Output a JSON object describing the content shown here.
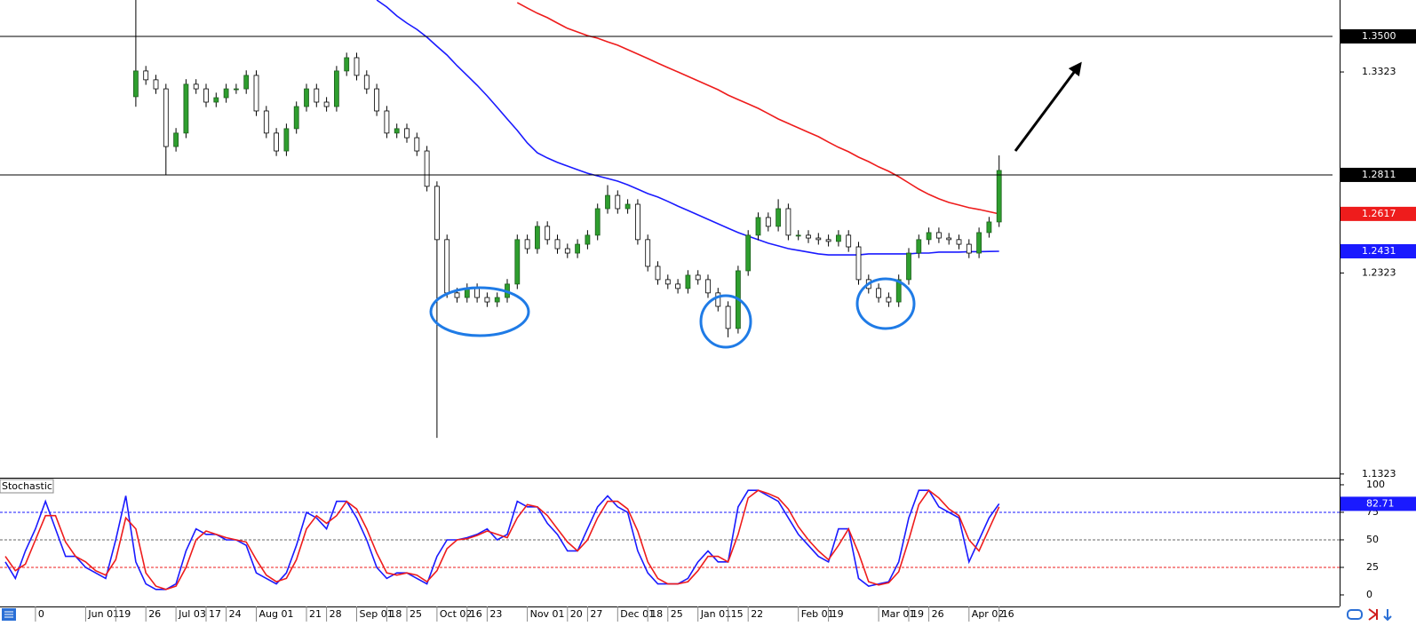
{
  "chart_data": [
    {
      "type": "candlestick",
      "categories": [
        null,
        null,
        null,
        "0",
        null,
        null,
        null,
        null,
        "Jun 01",
        null,
        null,
        "19",
        null,
        null,
        "26",
        null,
        null,
        "Jul 03",
        null,
        null,
        "17",
        null,
        "24",
        null,
        null,
        "Aug 01",
        null,
        null,
        null,
        null,
        "21",
        null,
        "28",
        null,
        null,
        "Sep 01",
        null,
        null,
        "18",
        null,
        "25",
        null,
        null,
        "Oct 02",
        null,
        null,
        "16",
        null,
        "23",
        null,
        null,
        null,
        "Nov 01",
        null,
        null,
        null,
        "20",
        null,
        "27",
        null,
        null,
        "Dec 01",
        null,
        null,
        "18",
        null,
        "25",
        null,
        null,
        "Jan 01",
        null,
        null,
        "15",
        null,
        "22",
        null,
        null,
        null,
        null,
        "Feb 01",
        null,
        null,
        "19",
        null,
        null,
        null,
        null,
        "Mar 01",
        null,
        null,
        "19",
        null,
        "26",
        null,
        null,
        null,
        "Apr 02",
        null,
        null,
        "16"
      ],
      "open": [
        null,
        null,
        null,
        null,
        null,
        null,
        null,
        null,
        null,
        null,
        null,
        null,
        null,
        1.32,
        1.3328,
        1.3284,
        1.3239,
        1.2952,
        1.3019,
        1.3262,
        1.3239,
        1.3173,
        1.3195,
        1.3239,
        1.3239,
        1.3306,
        1.3129,
        1.3019,
        1.293,
        1.3041,
        1.3151,
        1.3239,
        1.3173,
        1.3151,
        1.3328,
        1.3394,
        1.3306,
        1.3239,
        1.3129,
        1.3019,
        1.3041,
        1.2996,
        1.293,
        1.2754,
        1.2489,
        1.2224,
        1.2201,
        1.2246,
        1.2201,
        1.2179,
        1.2201,
        1.2268,
        1.2489,
        1.2444,
        1.2555,
        1.2489,
        1.2444,
        1.2422,
        1.2466,
        1.2511,
        1.2643,
        1.2709,
        1.2643,
        1.2665,
        1.2489,
        1.2356,
        1.229,
        1.2268,
        1.2246,
        1.2312,
        1.229,
        1.2224,
        1.2157,
        1.2047,
        1.2334,
        1.2511,
        1.2599,
        1.2555,
        1.2643,
        1.2511,
        1.2511,
        1.2497,
        1.2489,
        1.248,
        1.2511,
        1.2453,
        1.229,
        1.2246,
        1.2201,
        1.2179,
        1.229,
        1.2422,
        1.2489,
        1.2524,
        1.2497,
        1.2489,
        1.2466,
        1.2422,
        1.2524,
        1.2577
      ],
      "high": [
        null,
        null,
        null,
        null,
        null,
        null,
        null,
        null,
        null,
        null,
        null,
        null,
        null,
        1.3681,
        1.3353,
        1.3309,
        1.3264,
        1.3044,
        1.3287,
        1.3287,
        1.3264,
        1.322,
        1.3264,
        1.3264,
        1.3331,
        1.3331,
        1.3154,
        1.3044,
        1.3066,
        1.3176,
        1.3264,
        1.3264,
        1.3198,
        1.3353,
        1.3419,
        1.3419,
        1.3331,
        1.3264,
        1.3154,
        1.3066,
        1.3066,
        1.3021,
        1.2955,
        1.2779,
        1.2514,
        1.2249,
        1.2271,
        1.2271,
        1.2226,
        1.2226,
        1.2293,
        1.2514,
        1.2514,
        1.258,
        1.258,
        1.2514,
        1.2469,
        1.2491,
        1.2536,
        1.2668,
        1.276,
        1.2734,
        1.269,
        1.269,
        1.2514,
        1.2381,
        1.2315,
        1.2293,
        1.2337,
        1.2337,
        1.2315,
        1.2249,
        1.2182,
        1.2359,
        1.2536,
        1.2624,
        1.2624,
        1.269,
        1.2668,
        1.2536,
        1.2536,
        1.2522,
        1.2514,
        1.2536,
        1.2536,
        1.2478,
        1.2315,
        1.2271,
        1.2226,
        1.2315,
        1.2447,
        1.2514,
        1.2549,
        1.2549,
        1.2522,
        1.2514,
        1.2491,
        1.2549,
        1.2602,
        1.2908
      ],
      "low": [
        null,
        null,
        null,
        null,
        null,
        null,
        null,
        null,
        null,
        null,
        null,
        null,
        null,
        1.315,
        1.3259,
        1.3214,
        1.2811,
        1.2927,
        1.2994,
        1.3214,
        1.3148,
        1.3148,
        1.317,
        1.3214,
        1.3214,
        1.3104,
        1.2994,
        1.2905,
        1.2905,
        1.3016,
        1.3126,
        1.3148,
        1.3126,
        1.3126,
        1.3303,
        1.3281,
        1.3214,
        1.3104,
        1.2994,
        1.2994,
        1.2971,
        1.2905,
        1.2729,
        1.1503,
        1.2199,
        1.2176,
        1.2176,
        1.2176,
        1.2154,
        1.2154,
        1.2176,
        1.2243,
        1.2419,
        1.2419,
        1.2464,
        1.2419,
        1.2397,
        1.2397,
        1.2441,
        1.2486,
        1.2618,
        1.2618,
        1.2618,
        1.2464,
        1.2331,
        1.2265,
        1.2243,
        1.2221,
        1.2221,
        1.2265,
        1.2199,
        1.2132,
        1.2003,
        1.2022,
        1.2309,
        1.2486,
        1.253,
        1.253,
        1.2486,
        1.2486,
        1.2472,
        1.2464,
        1.2455,
        1.2455,
        1.2428,
        1.2265,
        1.2221,
        1.2176,
        1.2154,
        1.2154,
        1.2265,
        1.2397,
        1.2464,
        1.2472,
        1.2464,
        1.2441,
        1.2397,
        1.2397,
        1.2499,
        1.2552
      ],
      "close": [
        null,
        null,
        null,
        null,
        null,
        null,
        null,
        null,
        null,
        null,
        null,
        null,
        null,
        1.3328,
        1.3284,
        1.3239,
        1.2952,
        1.3019,
        1.3262,
        1.3239,
        1.3173,
        1.3195,
        1.3239,
        1.3239,
        1.3306,
        1.3129,
        1.3019,
        1.293,
        1.3041,
        1.3151,
        1.3239,
        1.3173,
        1.3151,
        1.3328,
        1.3394,
        1.3306,
        1.3239,
        1.3129,
        1.3019,
        1.3041,
        1.2996,
        1.293,
        1.2754,
        1.2489,
        1.2224,
        1.2201,
        1.2246,
        1.2201,
        1.2179,
        1.2201,
        1.2268,
        1.2489,
        1.2444,
        1.2555,
        1.2489,
        1.2444,
        1.2422,
        1.2466,
        1.2511,
        1.2643,
        1.2709,
        1.2643,
        1.2665,
        1.2489,
        1.2356,
        1.229,
        1.2268,
        1.2246,
        1.2312,
        1.229,
        1.2224,
        1.2157,
        1.2047,
        1.2334,
        1.2511,
        1.2599,
        1.2555,
        1.2643,
        1.2511,
        1.2511,
        1.2497,
        1.2489,
        1.248,
        1.2511,
        1.2453,
        1.229,
        1.2246,
        1.2201,
        1.2179,
        1.229,
        1.2422,
        1.2489,
        1.2524,
        1.2497,
        1.2489,
        1.2466,
        1.2422,
        1.2524,
        1.2577,
        1.2833
      ],
      "up_color": "#2e9e2e",
      "down_color": "#ffffff",
      "moving_averages": [
        {
          "color": "#1a1aff",
          "values": [
            null,
            null,
            null,
            null,
            null,
            null,
            null,
            null,
            null,
            null,
            null,
            null,
            null,
            null,
            null,
            null,
            null,
            null,
            null,
            null,
            null,
            null,
            null,
            null,
            null,
            null,
            null,
            null,
            null,
            null,
            null,
            null,
            null,
            null,
            null,
            null,
            null,
            1.3681,
            1.3646,
            1.3602,
            1.3566,
            1.3535,
            1.3496,
            1.3451,
            1.3407,
            1.3354,
            1.3306,
            1.3257,
            1.3204,
            1.3147,
            1.3089,
            1.3032,
            1.297,
            1.2921,
            1.2895,
            1.2873,
            1.2855,
            1.2837,
            1.2819,
            1.2806,
            1.2793,
            1.278,
            1.2762,
            1.274,
            1.2718,
            1.2701,
            1.2679,
            1.2656,
            1.2634,
            1.2612,
            1.259,
            1.2568,
            1.2546,
            1.2524,
            1.2506,
            1.2489,
            1.2471,
            1.2458,
            1.2444,
            1.2436,
            1.2427,
            1.2418,
            1.2413,
            1.2413,
            1.2413,
            1.2413,
            1.2418,
            1.2418,
            1.2418,
            1.2418,
            1.2418,
            1.2422,
            1.2422,
            1.2427,
            1.2427,
            1.2427,
            1.2429,
            1.2429,
            1.243,
            1.2431
          ]
        },
        {
          "color": "#ee1c1c",
          "values": [
            null,
            null,
            null,
            null,
            null,
            null,
            null,
            null,
            null,
            null,
            null,
            null,
            null,
            null,
            null,
            null,
            null,
            null,
            null,
            null,
            null,
            null,
            null,
            null,
            null,
            null,
            null,
            null,
            null,
            null,
            null,
            null,
            null,
            null,
            null,
            null,
            null,
            null,
            null,
            null,
            null,
            null,
            null,
            null,
            null,
            null,
            null,
            null,
            null,
            null,
            null,
            1.3668,
            1.3641,
            1.3615,
            1.3593,
            1.3566,
            1.354,
            1.3522,
            1.3504,
            1.3491,
            1.3473,
            1.3456,
            1.3434,
            1.3412,
            1.339,
            1.3367,
            1.3345,
            1.3323,
            1.3301,
            1.3279,
            1.3257,
            1.3235,
            1.3208,
            1.3186,
            1.3164,
            1.3142,
            1.3116,
            1.3089,
            1.3067,
            1.3045,
            1.3023,
            1.3001,
            1.2974,
            1.2948,
            1.2926,
            1.2899,
            1.2877,
            1.2851,
            1.2829,
            1.2802,
            1.2771,
            1.274,
            1.2714,
            1.2692,
            1.2674,
            1.2661,
            1.2648,
            1.2639,
            1.2628,
            1.2617
          ]
        }
      ],
      "hlines": [
        {
          "value": 1.35,
          "label": "1.3500"
        },
        1.2811
      ],
      "ylim": [
        1.1309,
        1.3681
      ],
      "yticks": [
        1.3323,
        1.2323,
        1.1323
      ]
    },
    {
      "type": "line",
      "title": "Stochastic",
      "series": [
        {
          "color": "#1a1aff",
          "values": [
            30,
            15,
            40,
            60,
            85,
            60,
            35,
            35,
            25,
            20,
            15,
            50,
            90,
            30,
            10,
            5,
            5,
            10,
            40,
            60,
            55,
            55,
            50,
            50,
            45,
            20,
            15,
            10,
            20,
            45,
            75,
            70,
            60,
            85,
            85,
            70,
            50,
            25,
            15,
            20,
            20,
            15,
            10,
            35,
            50,
            50,
            52,
            55,
            60,
            50,
            55,
            85,
            80,
            80,
            65,
            55,
            40,
            40,
            60,
            80,
            90,
            80,
            75,
            40,
            20,
            10,
            10,
            10,
            15,
            30,
            40,
            30,
            30,
            80,
            95,
            95,
            90,
            85,
            70,
            55,
            45,
            35,
            30,
            60,
            60,
            15,
            8,
            10,
            12,
            30,
            70,
            95,
            95,
            80,
            75,
            70,
            30,
            50,
            70,
            82.71
          ]
        },
        {
          "color": "#ee1c1c",
          "values": [
            35,
            22,
            28,
            50,
            72,
            72,
            48,
            35,
            30,
            22,
            18,
            32,
            70,
            60,
            20,
            8,
            5,
            8,
            25,
            50,
            58,
            55,
            52,
            50,
            48,
            32,
            18,
            12,
            15,
            32,
            60,
            72,
            65,
            72,
            85,
            78,
            60,
            38,
            20,
            18,
            20,
            18,
            12,
            22,
            42,
            50,
            51,
            54,
            58,
            55,
            52,
            70,
            82,
            80,
            72,
            60,
            48,
            40,
            50,
            70,
            85,
            85,
            78,
            58,
            30,
            15,
            10,
            10,
            12,
            22,
            35,
            35,
            30,
            55,
            88,
            95,
            92,
            88,
            78,
            62,
            50,
            40,
            32,
            45,
            60,
            38,
            12,
            9,
            11,
            21,
            50,
            82,
            95,
            88,
            78,
            72,
            50,
            40,
            60,
            80
          ]
        }
      ],
      "ylim": [
        -10.5,
        104.8
      ],
      "yticks": [
        0,
        25,
        50,
        75,
        100
      ],
      "levels": [
        75,
        50,
        25
      ],
      "level_colors": [
        "#1a1aff",
        "#666666",
        "#ee1c1c"
      ]
    }
  ]
}
